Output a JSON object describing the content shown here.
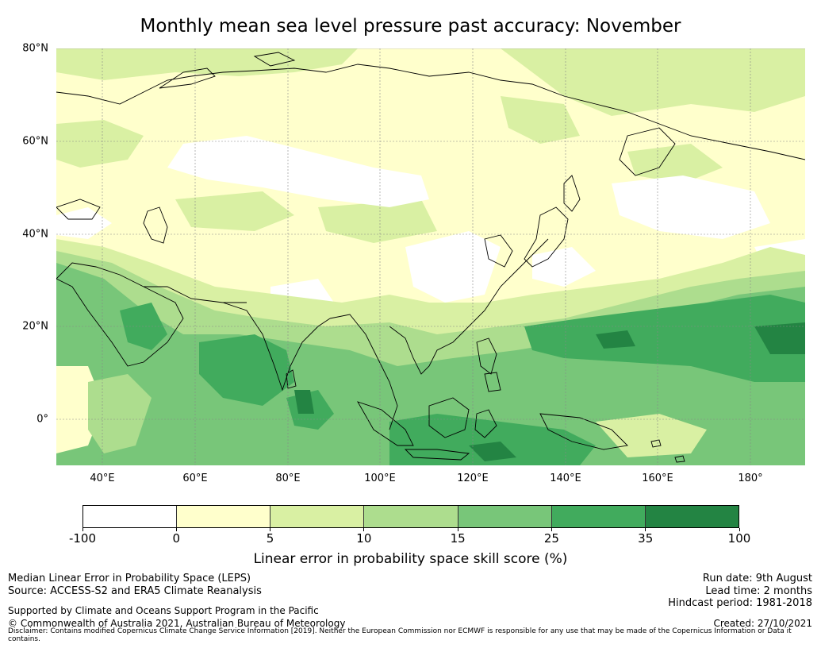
{
  "title": "Monthly mean sea level pressure past accuracy: November",
  "map": {
    "lat_labels": [
      "80°N",
      "60°N",
      "40°N",
      "20°N",
      "0°"
    ],
    "lon_labels": [
      "40°E",
      "60°E",
      "80°E",
      "100°E",
      "120°E",
      "140°E",
      "160°E",
      "180°"
    ]
  },
  "colorbar": {
    "colors": [
      "#ffffff",
      "#ffffcc",
      "#d9f0a3",
      "#addd8e",
      "#78c679",
      "#41ab5d",
      "#238443"
    ],
    "ticks": [
      "-100",
      "0",
      "5",
      "10",
      "15",
      "25",
      "35",
      "100"
    ],
    "label": "Linear error in probability space skill score (%)"
  },
  "footer": {
    "line1": "Median Linear Error in Probability Space (LEPS)",
    "line2": "Source: ACCESS-S2 and ERA5 Climate Reanalysis",
    "supported": "Supported by Climate and Oceans Support Program in the Pacific",
    "copyright": "© Commonwealth of Australia 2021, Australian Bureau of Meteorology",
    "run_date": "Run date: 9th August",
    "lead_time": "Lead time: 2 months",
    "hindcast": "Hindcast period: 1981-2018",
    "created": "Created: 27/10/2021",
    "disclaimer": "Disclaimer: Contains modified Copernicus Climate Change Service Information [2019]. Neither the European Commission nor ECMWF is responsible for any use that may be made of the Copernicus Information or Data it contains."
  }
}
